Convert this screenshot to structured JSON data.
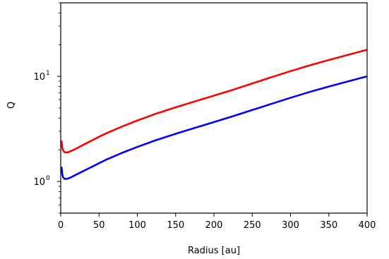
{
  "chart_data": {
    "type": "line",
    "title": "",
    "xlabel": "Radius [au]",
    "ylabel": "Q",
    "xlim": [
      0,
      400
    ],
    "ylim": [
      0.5,
      50
    ],
    "yscale": "log",
    "grid": false,
    "x_ticks": [
      0,
      50,
      100,
      150,
      200,
      250,
      300,
      350,
      400
    ],
    "x_tick_labels": [
      "0",
      "50",
      "100",
      "150",
      "200",
      "250",
      "300",
      "350",
      "400"
    ],
    "y_ticks": [
      {
        "value": 1,
        "base": "10",
        "exp": "0"
      },
      {
        "value": 10,
        "base": "10",
        "exp": "1"
      }
    ],
    "series": [
      {
        "color": "#ff0000",
        "x": [
          1,
          2,
          3,
          5,
          8,
          10,
          15,
          20,
          30,
          40,
          50,
          60,
          80,
          100,
          125,
          150,
          175,
          200,
          225,
          250,
          275,
          300,
          325,
          350,
          375,
          400
        ],
        "y": [
          2.45,
          2.1,
          1.98,
          1.9,
          1.89,
          1.9,
          1.97,
          2.05,
          2.24,
          2.44,
          2.66,
          2.88,
          3.33,
          3.8,
          4.43,
          5.07,
          5.77,
          6.55,
          7.45,
          8.55,
          9.8,
          11.2,
          12.7,
          14.3,
          16.0,
          17.9
        ]
      },
      {
        "color": "#0000ff",
        "x": [
          1,
          2,
          3,
          5,
          8,
          10,
          15,
          20,
          30,
          40,
          50,
          60,
          80,
          100,
          125,
          150,
          175,
          200,
          225,
          250,
          275,
          300,
          325,
          350,
          375,
          400
        ],
        "y": [
          1.38,
          1.18,
          1.1,
          1.06,
          1.06,
          1.07,
          1.11,
          1.16,
          1.26,
          1.37,
          1.49,
          1.62,
          1.87,
          2.13,
          2.48,
          2.84,
          3.23,
          3.67,
          4.18,
          4.78,
          5.47,
          6.25,
          7.1,
          8.0,
          8.95,
          10.0
        ]
      }
    ]
  }
}
